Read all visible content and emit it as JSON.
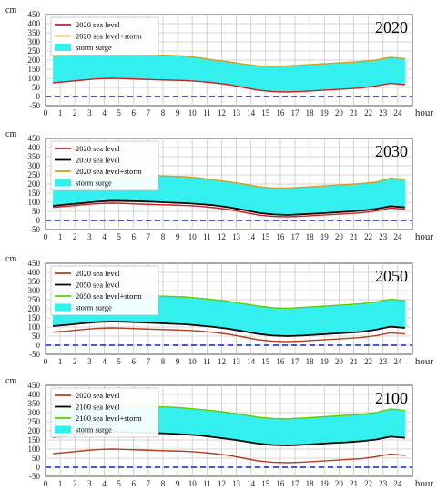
{
  "colors": {
    "surge_fill": "#33f0ee",
    "baseline": "#1020c0",
    "grid": "#c8c8c8",
    "sea2020": "#cc2020",
    "sea2030": "#000000",
    "sea2050": "#000000",
    "sea2100": "#000000",
    "storm_top_2020": "#d4a017",
    "storm_top_2030": "#d4a017",
    "storm_top_2050": "#66cc00",
    "storm_top_2100": "#66cc00",
    "sea2020_alt": "#b04020"
  },
  "chart_data": [
    {
      "type": "area",
      "title": "2020",
      "ylabel": "cm",
      "xlabel": "hour",
      "ylim": [
        -50,
        450
      ],
      "xlim": [
        0,
        25
      ],
      "grid": true,
      "legend_position": "top-left",
      "yticks": [
        "-50",
        "0",
        "50",
        "100",
        "150",
        "200",
        "250",
        "300",
        "350",
        "400",
        "450"
      ],
      "xticks": [
        "0",
        "1",
        "2",
        "3",
        "4",
        "5",
        "6",
        "7",
        "8",
        "9",
        "10",
        "11",
        "12",
        "13",
        "14",
        "15",
        "16",
        "17",
        "18",
        "19",
        "20",
        "21",
        "22",
        "23",
        "24"
      ],
      "x": [
        0.5,
        1.5,
        2.5,
        3.5,
        4.5,
        5.5,
        6.5,
        7.5,
        8.5,
        9.5,
        10.5,
        11.5,
        12.5,
        13.5,
        14.5,
        15.5,
        16.5,
        17.5,
        18.5,
        19.5,
        20.5,
        21.5,
        22.5,
        23.5,
        24.5
      ],
      "series": [
        {
          "name": "2020 sea level",
          "role": "line",
          "color_key": "sea2020",
          "values": [
            75,
            82,
            90,
            97,
            100,
            98,
            95,
            92,
            90,
            88,
            83,
            75,
            65,
            50,
            35,
            27,
            25,
            28,
            33,
            37,
            42,
            47,
            58,
            72,
            65
          ]
        },
        {
          "name": "2020 sea level+storm",
          "role": "top",
          "color_key": "storm_top_2020",
          "values": [
            220,
            228,
            232,
            232,
            232,
            232,
            230,
            228,
            225,
            222,
            212,
            200,
            190,
            178,
            168,
            165,
            168,
            173,
            178,
            182,
            187,
            192,
            200,
            215,
            208
          ]
        },
        {
          "name": "storm surge",
          "role": "fill",
          "between": [
            0,
            1
          ]
        }
      ]
    },
    {
      "type": "area",
      "title": "2030",
      "ylabel": "cm",
      "xlabel": "hour",
      "ylim": [
        -50,
        450
      ],
      "xlim": [
        0,
        25
      ],
      "grid": true,
      "legend_position": "top-left",
      "yticks": [
        "-50",
        "0",
        "50",
        "100",
        "150",
        "200",
        "250",
        "300",
        "350",
        "400",
        "450"
      ],
      "xticks": [
        "0",
        "1",
        "2",
        "3",
        "4",
        "5",
        "6",
        "7",
        "8",
        "9",
        "10",
        "11",
        "12",
        "13",
        "14",
        "15",
        "16",
        "17",
        "18",
        "19",
        "20",
        "21",
        "22",
        "23",
        "24"
      ],
      "x": [
        0.5,
        1.5,
        2.5,
        3.5,
        4.5,
        5.5,
        6.5,
        7.5,
        8.5,
        9.5,
        10.5,
        11.5,
        12.5,
        13.5,
        14.5,
        15.5,
        16.5,
        17.5,
        18.5,
        19.5,
        20.5,
        21.5,
        22.5,
        23.5,
        24.5
      ],
      "series": [
        {
          "name": "2020 sea level",
          "role": "line",
          "color_key": "sea2020",
          "values": [
            72,
            78,
            86,
            92,
            95,
            93,
            90,
            87,
            85,
            82,
            78,
            70,
            60,
            45,
            30,
            22,
            20,
            23,
            28,
            32,
            37,
            42,
            52,
            68,
            62
          ]
        },
        {
          "name": "2030 sea level",
          "role": "line",
          "color_key": "sea2030",
          "values": [
            80,
            88,
            95,
            103,
            108,
            107,
            105,
            102,
            98,
            95,
            90,
            83,
            72,
            58,
            42,
            33,
            30,
            34,
            38,
            43,
            48,
            54,
            63,
            78,
            72
          ]
        },
        {
          "name": "2020 sea level+storm",
          "role": "top",
          "color_key": "storm_top_2030",
          "values": [
            225,
            232,
            240,
            245,
            250,
            250,
            248,
            245,
            242,
            240,
            233,
            222,
            212,
            200,
            185,
            178,
            178,
            182,
            187,
            192,
            197,
            202,
            210,
            232,
            225
          ]
        },
        {
          "name": "storm surge",
          "role": "fill",
          "between": [
            1,
            2
          ]
        }
      ]
    },
    {
      "type": "area",
      "title": "2050",
      "ylabel": "cm",
      "xlabel": "hour",
      "ylim": [
        -50,
        450
      ],
      "xlim": [
        0,
        25
      ],
      "grid": true,
      "legend_position": "top-left",
      "yticks": [
        "-50",
        "0",
        "50",
        "100",
        "150",
        "200",
        "250",
        "300",
        "350",
        "400",
        "450"
      ],
      "xticks": [
        "0",
        "1",
        "2",
        "3",
        "4",
        "5",
        "6",
        "7",
        "8",
        "9",
        "10",
        "11",
        "12",
        "13",
        "14",
        "15",
        "16",
        "17",
        "18",
        "19",
        "20",
        "21",
        "22",
        "23",
        "24"
      ],
      "x": [
        0.5,
        1.5,
        2.5,
        3.5,
        4.5,
        5.5,
        6.5,
        7.5,
        8.5,
        9.5,
        10.5,
        11.5,
        12.5,
        13.5,
        14.5,
        15.5,
        16.5,
        17.5,
        18.5,
        19.5,
        20.5,
        21.5,
        22.5,
        23.5,
        24.5
      ],
      "series": [
        {
          "name": "2020 sea level",
          "role": "line",
          "color_key": "sea2020_alt",
          "values": [
            72,
            78,
            86,
            92,
            95,
            93,
            90,
            87,
            85,
            82,
            78,
            70,
            60,
            45,
            30,
            22,
            20,
            23,
            28,
            32,
            37,
            42,
            52,
            68,
            62
          ]
        },
        {
          "name": "2050 sea level",
          "role": "line",
          "color_key": "sea2050",
          "values": [
            105,
            112,
            120,
            127,
            130,
            128,
            125,
            122,
            118,
            115,
            108,
            100,
            90,
            76,
            62,
            53,
            50,
            53,
            58,
            63,
            68,
            73,
            85,
            102,
            95
          ]
        },
        {
          "name": "2050 sea level+storm",
          "role": "top",
          "color_key": "storm_top_2050",
          "values": [
            250,
            258,
            265,
            272,
            275,
            275,
            272,
            270,
            268,
            265,
            258,
            250,
            240,
            228,
            215,
            205,
            203,
            207,
            212,
            217,
            222,
            228,
            238,
            252,
            245
          ]
        },
        {
          "name": "storm surge",
          "role": "fill",
          "between": [
            1,
            2
          ]
        }
      ]
    },
    {
      "type": "area",
      "title": "2100",
      "ylabel": "cm",
      "xlabel": "hour",
      "ylim": [
        -50,
        450
      ],
      "xlim": [
        0,
        25
      ],
      "grid": true,
      "legend_position": "top-left",
      "yticks": [
        "-50",
        "0",
        "50",
        "100",
        "150",
        "200",
        "250",
        "300",
        "350",
        "400",
        "450"
      ],
      "xticks": [
        "0",
        "1",
        "2",
        "3",
        "4",
        "5",
        "6",
        "7",
        "8",
        "9",
        "10",
        "11",
        "12",
        "13",
        "14",
        "15",
        "16",
        "17",
        "18",
        "19",
        "20",
        "21",
        "22",
        "23",
        "24"
      ],
      "x": [
        0.5,
        1.5,
        2.5,
        3.5,
        4.5,
        5.5,
        6.5,
        7.5,
        8.5,
        9.5,
        10.5,
        11.5,
        12.5,
        13.5,
        14.5,
        15.5,
        16.5,
        17.5,
        18.5,
        19.5,
        20.5,
        21.5,
        22.5,
        23.5,
        24.5
      ],
      "series": [
        {
          "name": "2020 sea level",
          "role": "line",
          "color_key": "sea2020_alt",
          "values": [
            75,
            82,
            90,
            97,
            100,
            98,
            95,
            92,
            90,
            88,
            83,
            75,
            65,
            50,
            35,
            27,
            25,
            28,
            33,
            37,
            42,
            47,
            58,
            72,
            65
          ]
        },
        {
          "name": "2100 sea level",
          "role": "line",
          "color_key": "sea2100",
          "values": [
            165,
            175,
            185,
            192,
            195,
            193,
            190,
            188,
            185,
            180,
            175,
            165,
            155,
            143,
            130,
            122,
            120,
            123,
            128,
            133,
            137,
            143,
            152,
            168,
            162
          ]
        },
        {
          "name": "2100 sea level+storm",
          "role": "top",
          "color_key": "storm_top_2100",
          "values": [
            315,
            322,
            330,
            335,
            338,
            338,
            335,
            333,
            330,
            325,
            318,
            310,
            300,
            288,
            275,
            268,
            266,
            270,
            275,
            280,
            285,
            290,
            300,
            320,
            312
          ]
        },
        {
          "name": "storm surge",
          "role": "fill",
          "between": [
            1,
            2
          ]
        }
      ]
    }
  ]
}
